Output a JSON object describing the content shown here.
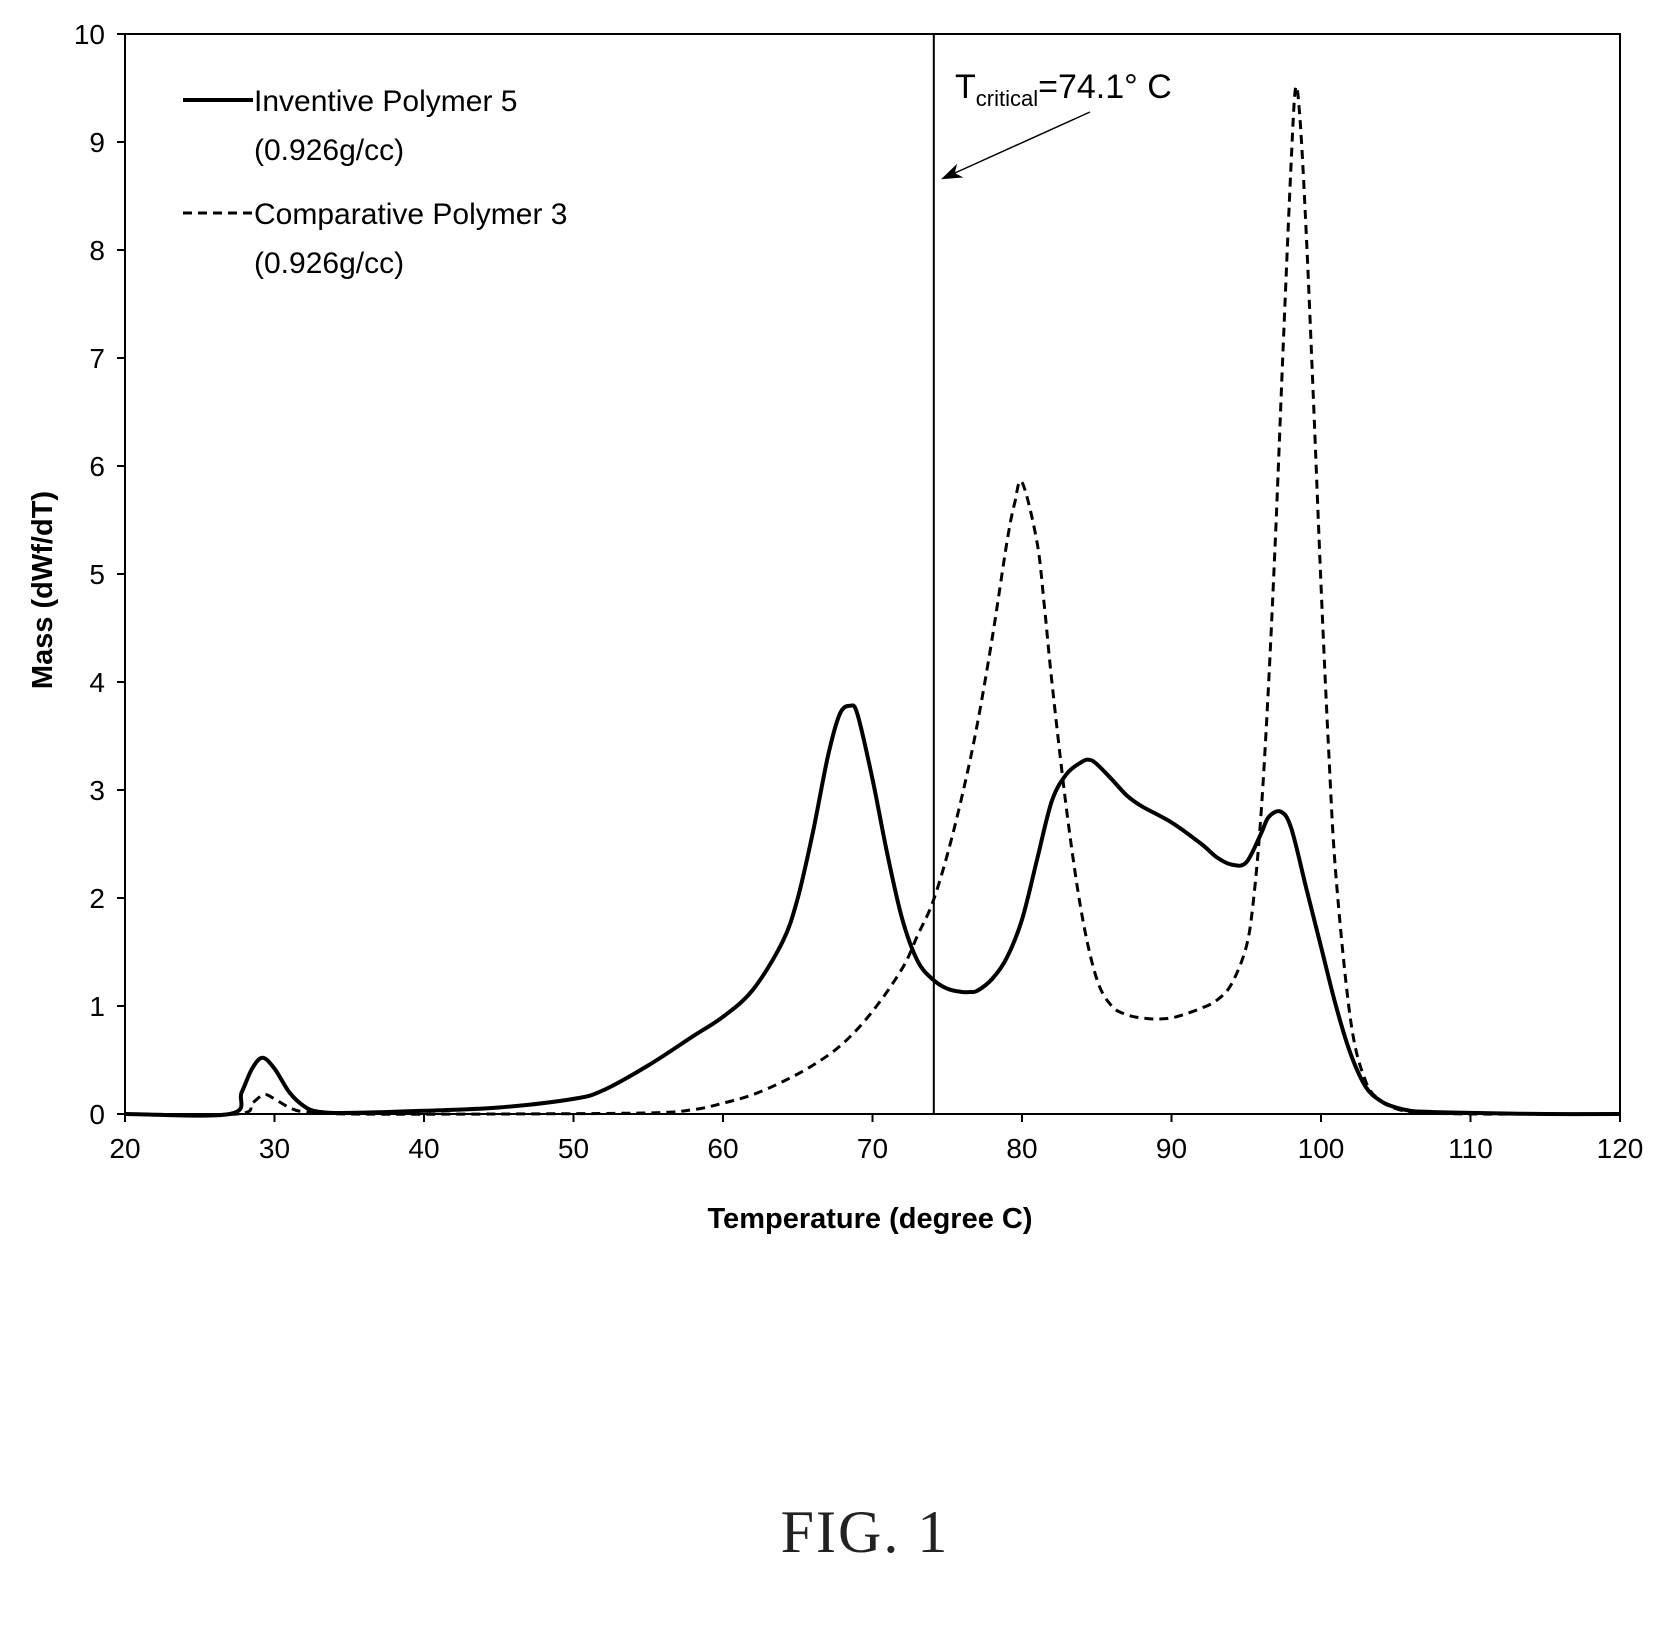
{
  "chart_data": {
    "type": "line",
    "xlabel": "Temperature (degree C)",
    "ylabel": "Mass (dWf/dT)",
    "xlim": [
      20,
      120
    ],
    "ylim": [
      0,
      10
    ],
    "x_ticks": [
      "20",
      "30",
      "40",
      "50",
      "60",
      "70",
      "80",
      "90",
      "100",
      "110",
      "120"
    ],
    "y_ticks": [
      "0",
      "1",
      "2",
      "3",
      "4",
      "5",
      "6",
      "7",
      "8",
      "9",
      "10"
    ],
    "grid": false,
    "legend_position": "top-left",
    "legend": [
      {
        "name": "Inventive Polymer 5",
        "note": "(0.926g/cc)",
        "style": "solid"
      },
      {
        "name": "Comparative Polymer 3",
        "note": "(0.926g/cc)",
        "style": "dashed"
      }
    ],
    "annotation": {
      "base": "T",
      "subscript": "critical",
      "value": "=74.1° C",
      "x": 74.1
    },
    "series": [
      {
        "name": "Inventive Polymer 5",
        "style": "solid",
        "x": [
          20,
          27,
          27.8,
          28.5,
          29.2,
          30,
          31,
          32,
          33,
          35,
          40,
          45,
          50,
          52,
          55,
          58,
          60,
          62,
          64,
          65,
          66,
          67,
          67.8,
          68.5,
          69,
          70,
          71,
          72,
          73,
          74,
          75,
          76,
          76.5,
          77,
          78,
          79,
          80,
          81,
          82,
          83,
          84,
          84.5,
          85,
          86,
          87,
          88,
          90,
          92,
          93,
          94,
          95,
          96,
          96.5,
          97.3,
          98,
          99,
          100,
          101,
          102,
          103,
          104,
          105,
          106,
          107,
          110,
          115,
          120
        ],
        "y": [
          0,
          0,
          0.2,
          0.42,
          0.52,
          0.42,
          0.2,
          0.07,
          0.02,
          0.01,
          0.03,
          0.06,
          0.14,
          0.22,
          0.45,
          0.72,
          0.9,
          1.15,
          1.6,
          2.0,
          2.6,
          3.3,
          3.7,
          3.78,
          3.7,
          3.1,
          2.4,
          1.8,
          1.42,
          1.25,
          1.16,
          1.13,
          1.13,
          1.14,
          1.25,
          1.45,
          1.8,
          2.35,
          2.9,
          3.15,
          3.26,
          3.28,
          3.24,
          3.1,
          2.95,
          2.85,
          2.7,
          2.5,
          2.38,
          2.31,
          2.33,
          2.6,
          2.75,
          2.8,
          2.65,
          2.1,
          1.55,
          1.0,
          0.55,
          0.25,
          0.12,
          0.06,
          0.03,
          0.02,
          0.01,
          0,
          0
        ]
      },
      {
        "name": "Comparative Polymer 3",
        "style": "dashed",
        "x": [
          20,
          27.5,
          28.5,
          29.3,
          30,
          31,
          32,
          35,
          45,
          55,
          58,
          60,
          62,
          64,
          66,
          68,
          70,
          72,
          73,
          74,
          75,
          76,
          77,
          78,
          79,
          79.5,
          80,
          81,
          81.5,
          82,
          83,
          84,
          85,
          86,
          87,
          88,
          89,
          90,
          91,
          92,
          93,
          94,
          95,
          95.5,
          96,
          96.5,
          97,
          97.5,
          98,
          98.3,
          98.6,
          99,
          99.5,
          100,
          100.5,
          101,
          102,
          103,
          104,
          105,
          106,
          107,
          110,
          115,
          120
        ],
        "y": [
          0,
          0,
          0.1,
          0.18,
          0.14,
          0.06,
          0.02,
          0,
          0,
          0.01,
          0.04,
          0.1,
          0.18,
          0.3,
          0.45,
          0.65,
          0.95,
          1.35,
          1.65,
          1.95,
          2.4,
          2.95,
          3.6,
          4.4,
          5.3,
          5.65,
          5.85,
          5.3,
          4.7,
          4.0,
          2.8,
          1.85,
          1.25,
          1.0,
          0.92,
          0.89,
          0.88,
          0.89,
          0.93,
          0.98,
          1.05,
          1.2,
          1.55,
          2.0,
          2.8,
          4.0,
          5.5,
          7.2,
          8.8,
          9.5,
          9.2,
          8.2,
          6.6,
          4.9,
          3.4,
          2.2,
          0.85,
          0.3,
          0.12,
          0.05,
          0.02,
          0.01,
          0,
          0,
          0
        ]
      }
    ]
  },
  "figure_caption": "FIG. 1"
}
